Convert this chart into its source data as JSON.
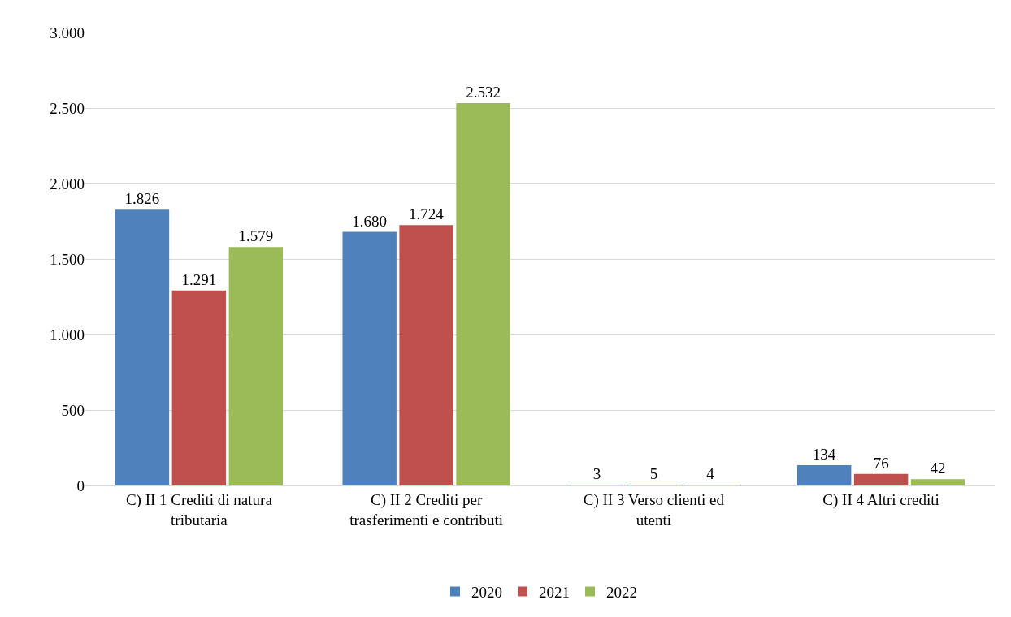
{
  "chart_data": {
    "type": "bar",
    "categories": [
      "C) II 1 Crediti di natura tributaria",
      "C) II 2 Crediti per trasferimenti e contributi",
      "C) II 3 Verso clienti ed utenti",
      "C) II 4 Altri crediti"
    ],
    "series": [
      {
        "name": "2020",
        "color": "#4f81bd",
        "values": [
          1826,
          1680,
          3,
          134
        ],
        "value_labels": [
          "1.826",
          "1.680",
          "3",
          "134"
        ]
      },
      {
        "name": "2021",
        "color": "#c0504d",
        "values": [
          1291,
          1724,
          5,
          76
        ],
        "value_labels": [
          "1.291",
          "1.724",
          "5",
          "76"
        ]
      },
      {
        "name": "2022",
        "color": "#9bbb59",
        "values": [
          1579,
          2532,
          4,
          42
        ],
        "value_labels": [
          "1.579",
          "2.532",
          "4",
          "42"
        ]
      }
    ],
    "ylim": [
      0,
      3000
    ],
    "yticks": [
      0,
      500,
      {
        "value": 1000,
        "label": "1.000"
      },
      {
        "value": 1500,
        "label": "1.500"
      },
      {
        "value": 2000,
        "label": "2.000"
      },
      {
        "value": 2500,
        "label": "2.500"
      },
      {
        "value": 3000,
        "label": "3.000"
      }
    ],
    "grid": "y",
    "legend": "bottom"
  }
}
